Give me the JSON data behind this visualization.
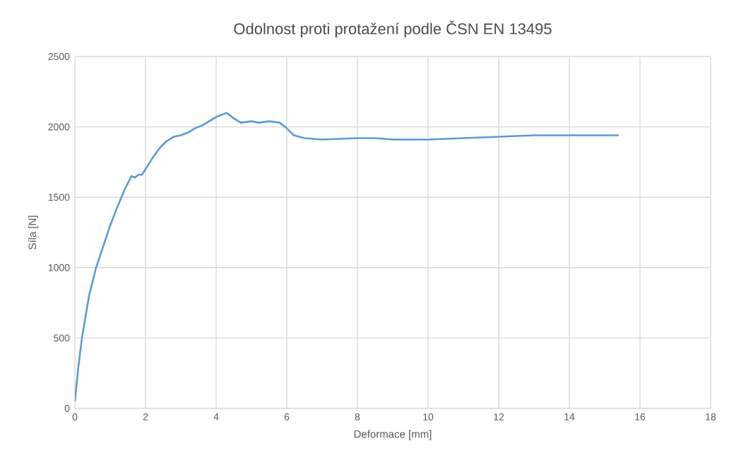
{
  "chart_data": {
    "type": "line",
    "title": "Odolnost proti protažení podle ČSN EN 13495",
    "xlabel": "Deformace  [mm]",
    "ylabel": "Síla  [N]",
    "x": [
      0,
      0.1,
      0.2,
      0.4,
      0.6,
      0.8,
      1.0,
      1.2,
      1.4,
      1.6,
      1.7,
      1.8,
      1.9,
      2.0,
      2.2,
      2.4,
      2.6,
      2.8,
      3.0,
      3.2,
      3.4,
      3.6,
      3.8,
      4.0,
      4.2,
      4.3,
      4.5,
      4.7,
      5.0,
      5.2,
      5.5,
      5.8,
      6.0,
      6.2,
      6.5,
      7,
      8,
      8.5,
      9,
      10,
      11,
      12,
      13,
      14,
      15.4
    ],
    "series": [
      {
        "color": "#5b9bd5",
        "values": [
          50,
          300,
          500,
          800,
          1000,
          1150,
          1300,
          1430,
          1550,
          1650,
          1640,
          1660,
          1660,
          1700,
          1780,
          1850,
          1900,
          1930,
          1940,
          1960,
          1990,
          2010,
          2040,
          2070,
          2090,
          2100,
          2060,
          2030,
          2040,
          2030,
          2040,
          2030,
          1990,
          1940,
          1920,
          1910,
          1920,
          1920,
          1910,
          1910,
          1920,
          1930,
          1940,
          1940,
          1940
        ]
      }
    ],
    "xlim": [
      0,
      18
    ],
    "xticks": [
      0,
      2,
      4,
      6,
      8,
      10,
      12,
      14,
      16,
      18
    ],
    "ylim": [
      0,
      2500
    ],
    "yticks": [
      0,
      500,
      1000,
      1500,
      2000,
      2500
    ],
    "grid": true,
    "marker": "none",
    "line_style": "solid"
  }
}
